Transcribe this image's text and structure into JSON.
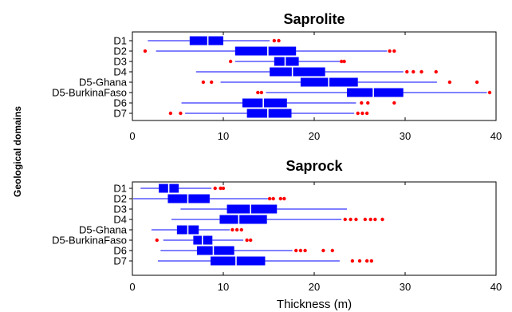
{
  "figure": {
    "y_axis_label": "Geological domains",
    "x_axis_label": "Thickness (m)"
  },
  "chart_data": [
    {
      "type": "boxplot",
      "title": "Saprolite",
      "ylabel": "Geological domains",
      "xlabel": "",
      "xlim": [
        0,
        40
      ],
      "xticks": [
        0,
        10,
        20,
        30,
        40
      ],
      "grid": false,
      "colors": {
        "box": "#0000ff",
        "whisker": "#0000ff",
        "median": "#ffffff",
        "outlier": "#ff0000"
      },
      "categories": [
        "D1",
        "D2",
        "D3",
        "D4",
        "D5-Ghana",
        "D5-BurkinaFaso",
        "D6",
        "D7"
      ],
      "boxes": [
        {
          "category": "D1",
          "whisker_low": 1.7,
          "q1": 6.3,
          "median": 8.3,
          "q3": 10.0,
          "whisker_high": 15.1,
          "outliers": [
            15.6,
            16.1
          ]
        },
        {
          "category": "D2",
          "whisker_low": 2.6,
          "q1": 11.3,
          "median": 14.9,
          "q3": 18.0,
          "whisker_high": 28.0,
          "outliers": [
            1.4,
            28.3,
            28.8
          ]
        },
        {
          "category": "D3",
          "whisker_low": 11.3,
          "q1": 15.6,
          "median": 16.8,
          "q3": 18.3,
          "whisker_high": 22.8,
          "outliers": [
            10.8,
            23.0,
            23.3
          ]
        },
        {
          "category": "D4",
          "whisker_low": 7.0,
          "q1": 15.1,
          "median": 17.6,
          "q3": 21.2,
          "whisker_high": 29.8,
          "outliers": [
            30.2,
            30.9,
            31.8,
            33.4
          ]
        },
        {
          "category": "D5-Ghana",
          "whisker_low": 9.7,
          "q1": 18.5,
          "median": 21.6,
          "q3": 24.8,
          "whisker_high": 33.5,
          "outliers": [
            7.8,
            8.7,
            34.9,
            37.9
          ]
        },
        {
          "category": "D5-BurkinaFaso",
          "whisker_low": 14.7,
          "q1": 23.6,
          "median": 26.5,
          "q3": 29.8,
          "whisker_high": 39.0,
          "outliers": [
            13.8,
            14.2,
            39.3
          ]
        },
        {
          "category": "D6",
          "whisker_low": 5.4,
          "q1": 12.1,
          "median": 14.4,
          "q3": 17.0,
          "whisker_high": 24.6,
          "outliers": [
            25.2,
            25.9,
            28.8
          ]
        },
        {
          "category": "D7",
          "whisker_low": 5.8,
          "q1": 12.6,
          "median": 14.9,
          "q3": 17.5,
          "whisker_high": 24.4,
          "outliers": [
            4.2,
            5.3,
            24.8,
            25.3,
            25.8
          ]
        }
      ]
    },
    {
      "type": "boxplot",
      "title": "Saprock",
      "ylabel": "Geological domains",
      "xlabel": "Thickness (m)",
      "xlim": [
        0,
        40
      ],
      "xticks": [
        0,
        10,
        20,
        30,
        40
      ],
      "grid": false,
      "colors": {
        "box": "#0000ff",
        "whisker": "#0000ff",
        "median": "#ffffff",
        "outlier": "#ff0000"
      },
      "categories": [
        "D1",
        "D2",
        "D3",
        "D4",
        "D5-Ghana",
        "D5-BurkinaFaso",
        "D6",
        "D7"
      ],
      "boxes": [
        {
          "category": "D1",
          "whisker_low": 0.9,
          "q1": 2.9,
          "median": 4.0,
          "q3": 5.1,
          "whisker_high": 8.7,
          "outliers": [
            9.1,
            9.7,
            10.0
          ]
        },
        {
          "category": "D2",
          "whisker_low": 0.1,
          "q1": 3.9,
          "median": 6.1,
          "q3": 8.5,
          "whisker_high": 14.9,
          "outliers": [
            15.1,
            15.5,
            16.3,
            16.7
          ]
        },
        {
          "category": "D3",
          "whisker_low": 5.3,
          "q1": 10.4,
          "median": 13.0,
          "q3": 15.9,
          "whisker_high": 23.6,
          "outliers": []
        },
        {
          "category": "D4",
          "whisker_low": 4.3,
          "q1": 9.6,
          "median": 11.7,
          "q3": 14.8,
          "whisker_high": 23.0,
          "outliers": [
            23.4,
            24.0,
            24.6,
            25.6,
            26.2,
            26.7,
            27.5
          ]
        },
        {
          "category": "D5-Ghana",
          "whisker_low": 2.1,
          "q1": 4.9,
          "median": 6.1,
          "q3": 7.3,
          "whisker_high": 10.7,
          "outliers": [
            11.0,
            11.5,
            12.0
          ]
        },
        {
          "category": "D5-BurkinaFaso",
          "whisker_low": 3.4,
          "q1": 6.7,
          "median": 7.7,
          "q3": 8.8,
          "whisker_high": 12.2,
          "outliers": [
            2.7,
            12.6,
            13.0
          ]
        },
        {
          "category": "D6",
          "whisker_low": 3.1,
          "q1": 7.1,
          "median": 8.9,
          "q3": 11.2,
          "whisker_high": 17.6,
          "outliers": [
            18.0,
            18.5,
            19.0,
            21.0,
            22.0
          ]
        },
        {
          "category": "D7",
          "whisker_low": 2.8,
          "q1": 8.6,
          "median": 11.4,
          "q3": 14.6,
          "whisker_high": 22.8,
          "outliers": [
            24.2,
            25.0,
            25.8,
            26.3
          ]
        }
      ]
    }
  ]
}
